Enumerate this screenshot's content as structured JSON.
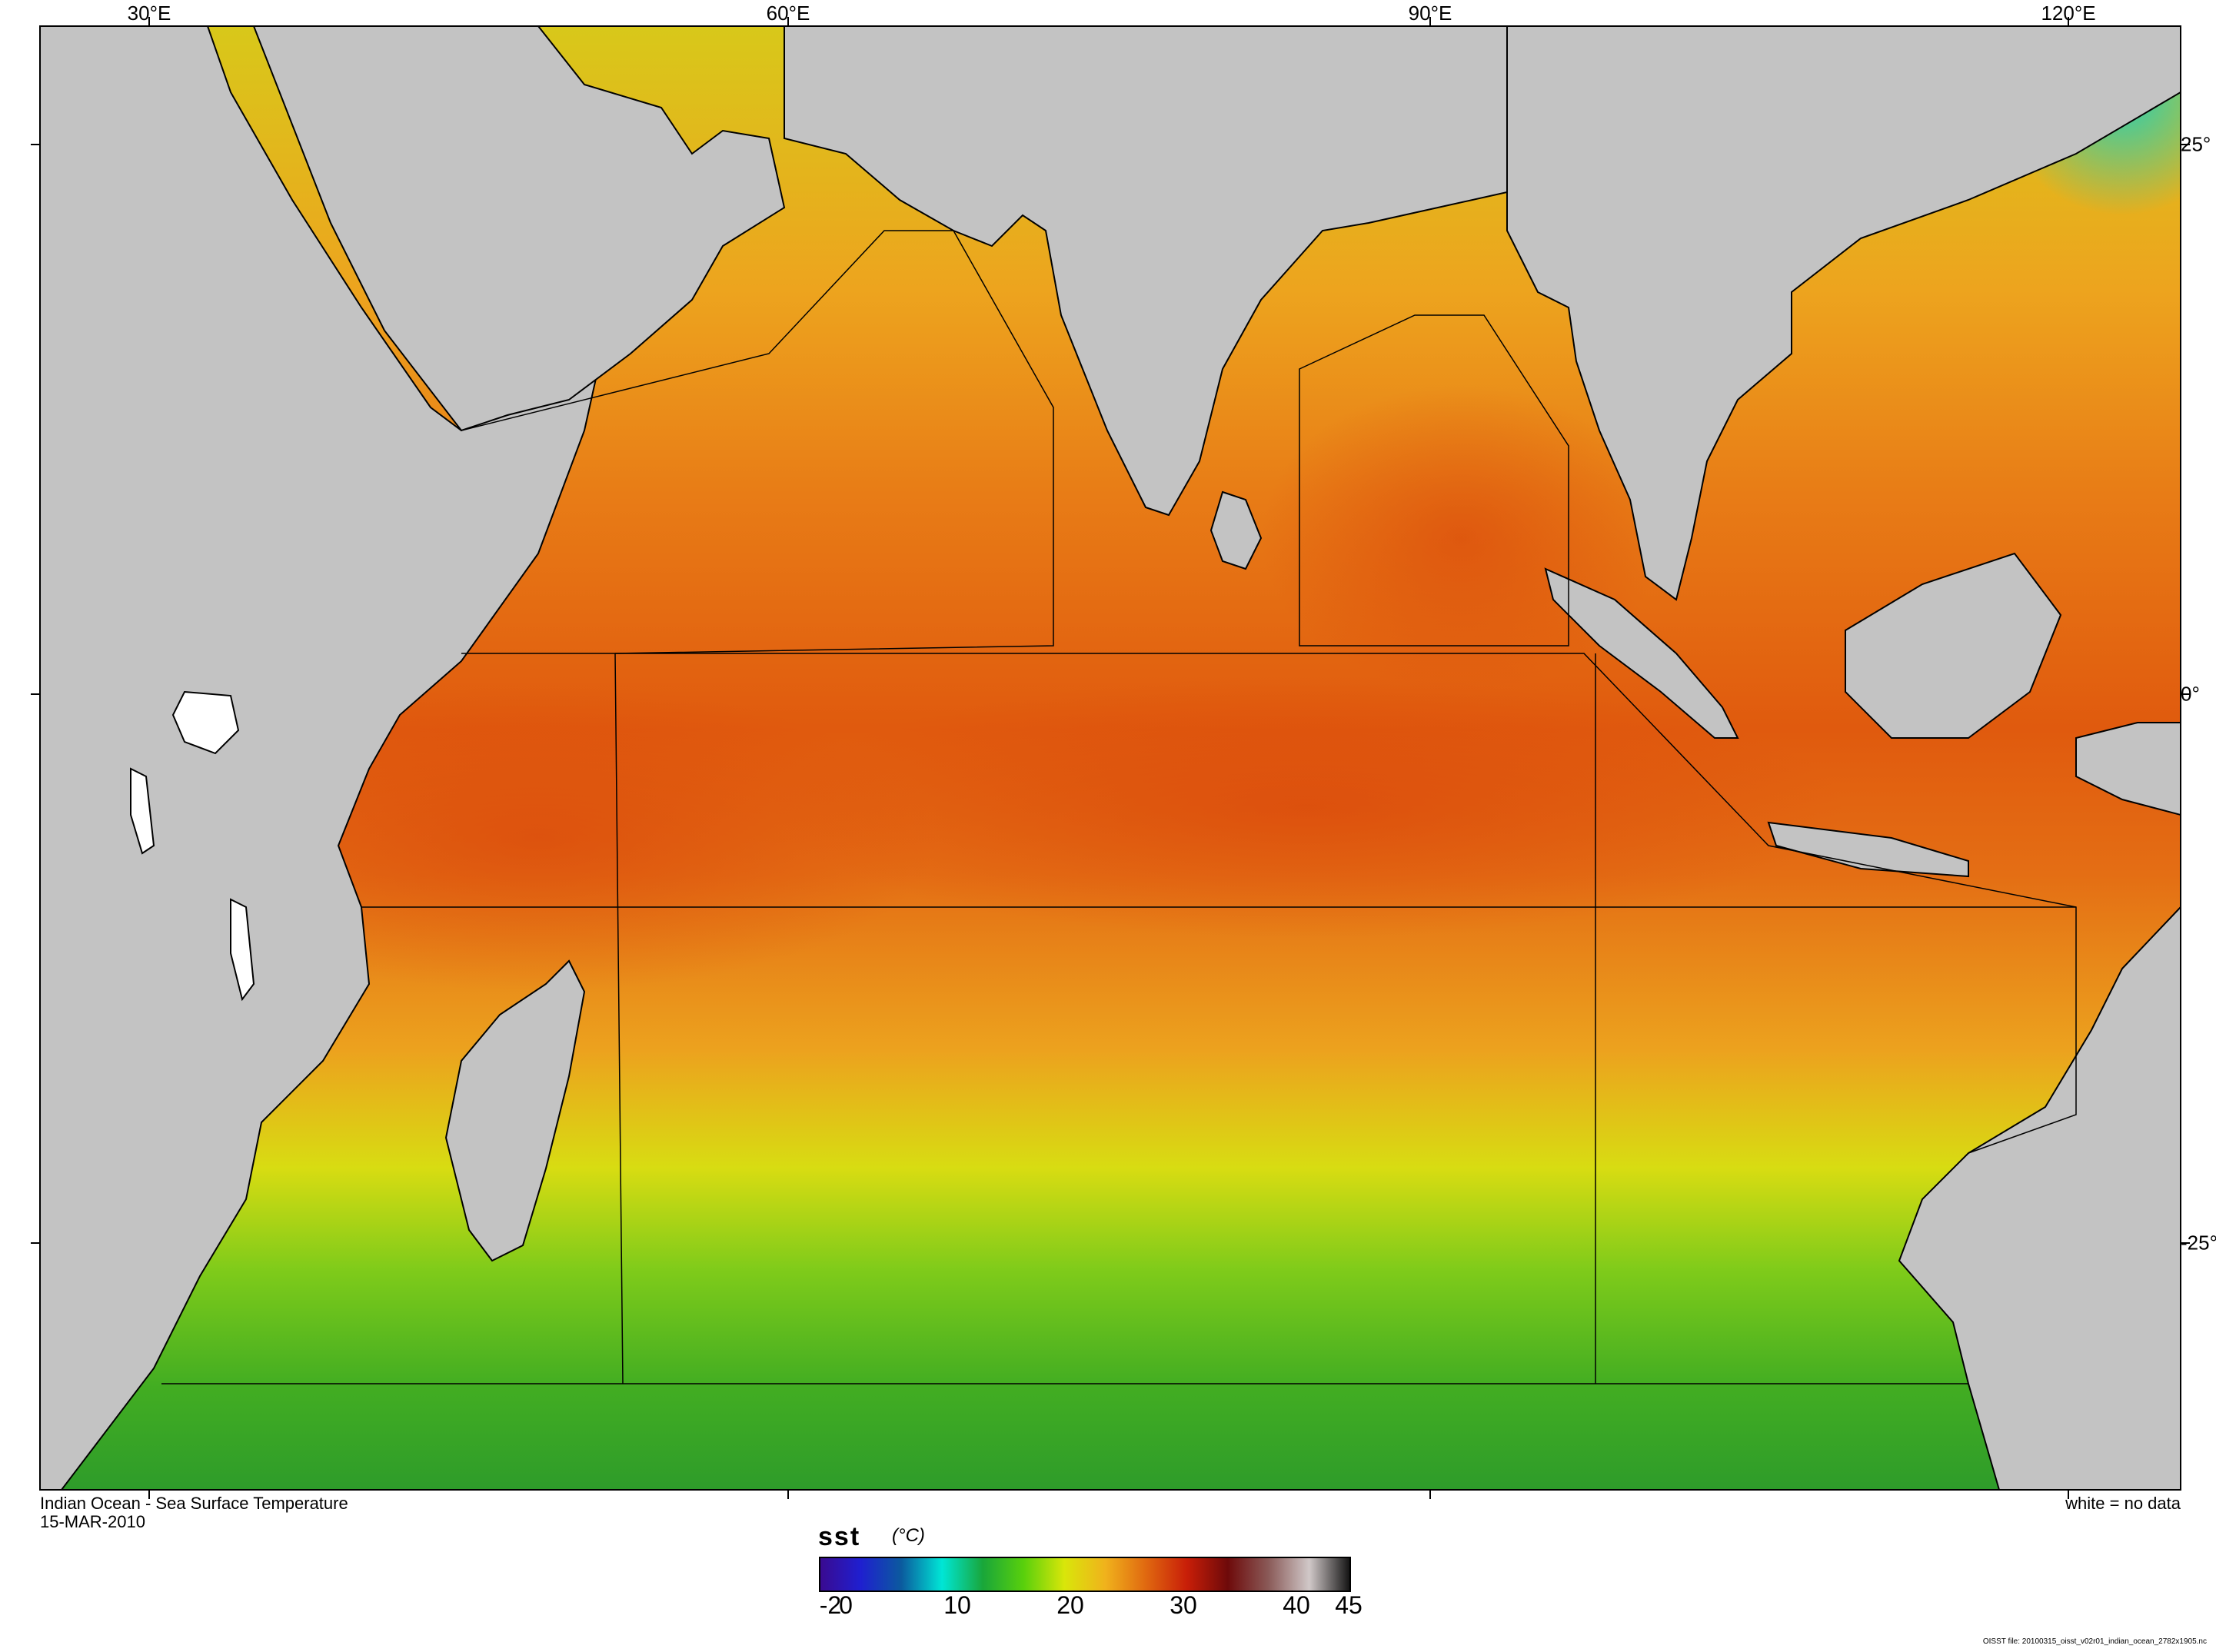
{
  "map": {
    "title": "Indian Ocean - Sea Surface Temperature",
    "date": "15-MAR-2010",
    "note": "white = no data",
    "file_note": "OISST file: 20100315_oisst_v02r01_indian_ocean_2782x1905.nc",
    "lon_labels": [
      "30°E",
      "60°E",
      "90°E",
      "120°E"
    ],
    "lat_labels": [
      "25°",
      "0°",
      "-25°"
    ],
    "land_color": "#c3c3c3",
    "nodata_color": "#ffffff"
  },
  "colorbar": {
    "variable": "sst",
    "unit": "(°C)",
    "ticks": [
      "-2",
      "0",
      "10",
      "20",
      "30",
      "40",
      "45"
    ],
    "range": [
      -2,
      45
    ],
    "colors": [
      "#3a0a8f",
      "#1f1fd0",
      "#0b5a9e",
      "#00e6d6",
      "#19a63a",
      "#59d00c",
      "#d9e60a",
      "#f0b21c",
      "#e06810",
      "#c81e08",
      "#6e0a0a",
      "#8a5a58",
      "#d0c8c8",
      "#111111"
    ]
  }
}
